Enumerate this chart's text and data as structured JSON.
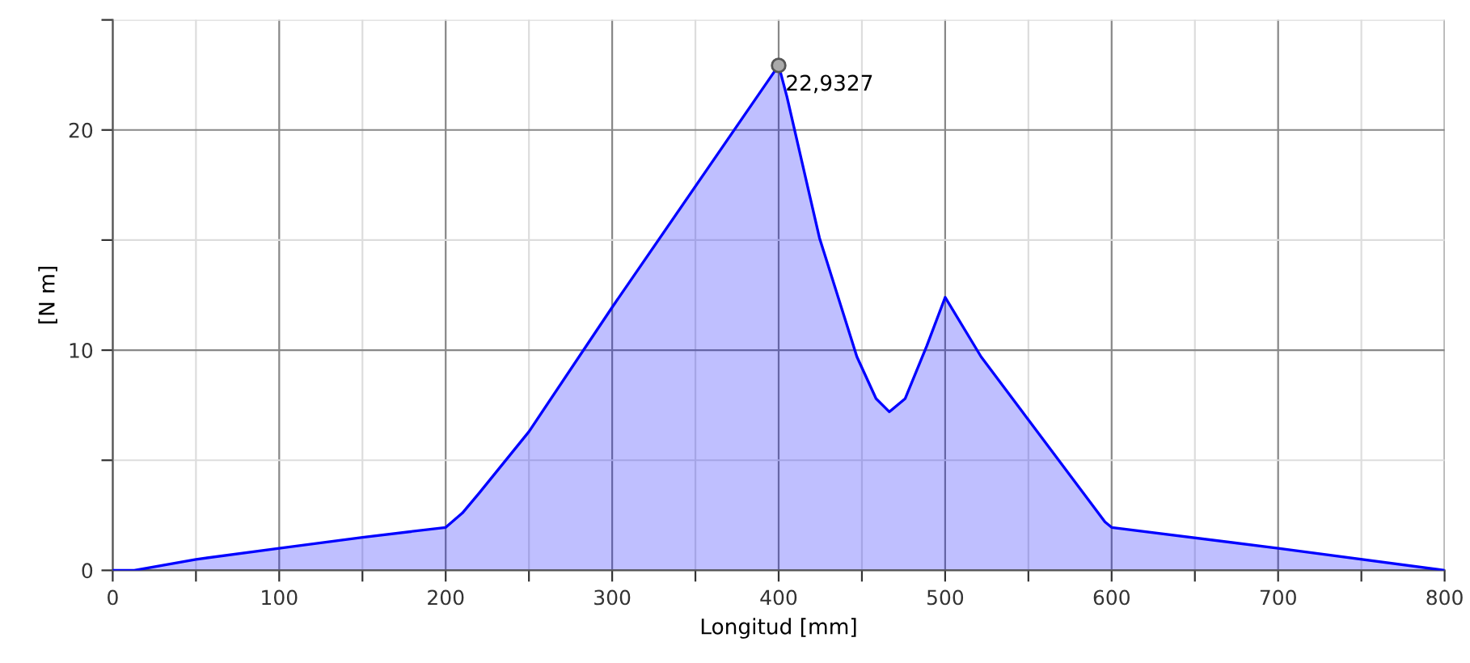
{
  "chart_data": {
    "type": "area",
    "xlabel": "Longitud [mm]",
    "ylabel": "[N m]",
    "x": [
      0,
      13,
      50,
      100,
      150,
      200,
      210,
      220,
      250,
      300,
      400,
      405,
      424.5,
      447,
      458.5,
      466.5,
      476,
      489,
      500,
      521.6,
      596,
      600,
      700,
      800
    ],
    "series": [
      {
        "color": "#0000ff",
        "values": [
          0,
          0,
          0.5,
          1.0,
          1.5,
          1.95,
          2.6,
          3.5,
          6.3,
          11.95,
          22.9327,
          21.5,
          15.1,
          9.7,
          7.8,
          7.2,
          7.8,
          10.2,
          12.4,
          9.7,
          2.2,
          1.95,
          1.0,
          0
        ]
      }
    ],
    "xlim": [
      0,
      800
    ],
    "ylim": [
      0,
      25
    ],
    "xticks": [
      0,
      {
        "value": 50,
        "label": null
      },
      100,
      {
        "value": 150,
        "label": null
      },
      200,
      {
        "value": 250,
        "label": null
      },
      300,
      {
        "value": 350,
        "label": null
      },
      400,
      {
        "value": 450,
        "label": null
      },
      500,
      {
        "value": 550,
        "label": null
      },
      600,
      {
        "value": 650,
        "label": null
      },
      700,
      {
        "value": 750,
        "label": null
      },
      800
    ],
    "yticks": [
      0,
      {
        "value": 5,
        "label": null
      },
      10,
      {
        "value": 15,
        "label": null
      },
      20,
      {
        "value": 25,
        "label": null
      }
    ],
    "grid": true,
    "annotations": [
      {
        "text": "22,9327",
        "x": 400,
        "y": 22.9327
      }
    ]
  }
}
